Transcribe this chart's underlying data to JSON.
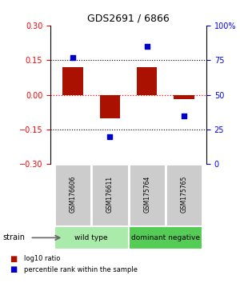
{
  "title": "GDS2691 / 6866",
  "samples": [
    "GSM176606",
    "GSM176611",
    "GSM175764",
    "GSM175765"
  ],
  "log10_ratio": [
    0.12,
    -0.1,
    0.12,
    -0.02
  ],
  "percentile_rank": [
    77,
    20,
    85,
    35
  ],
  "bar_color": "#aa1100",
  "square_color": "#0000cc",
  "ylim_left": [
    -0.3,
    0.3
  ],
  "ylim_right": [
    0,
    100
  ],
  "yticks_left": [
    0.3,
    0.15,
    0,
    -0.15,
    -0.3
  ],
  "yticks_right": [
    100,
    75,
    50,
    25,
    0
  ],
  "ytick_labels_right": [
    "100%",
    "75",
    "50",
    "25",
    "0"
  ],
  "hlines_black": [
    0.15,
    -0.15
  ],
  "hline_red": 0,
  "groups": [
    {
      "label": "wild type",
      "samples": [
        0,
        1
      ],
      "color": "#aaeaaa"
    },
    {
      "label": "dominant negative",
      "samples": [
        2,
        3
      ],
      "color": "#55cc55"
    }
  ],
  "strain_label": "strain",
  "legend_entries": [
    {
      "color": "#aa1100",
      "label": "log10 ratio"
    },
    {
      "color": "#0000cc",
      "label": "percentile rank within the sample"
    }
  ],
  "bar_width": 0.55,
  "background_color": "#ffffff",
  "sample_box_color": "#cccccc",
  "sample_box_edge": "#ffffff"
}
